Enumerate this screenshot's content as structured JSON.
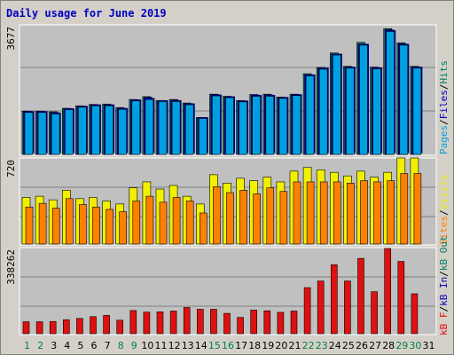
{
  "title": "Daily usage for June 2019",
  "colors": {
    "pages": "#00a0e0",
    "files": "#0000c0",
    "hits": "#00806a",
    "visits": "#f0f000",
    "sites": "#ff8000",
    "kbin": "#0000c0",
    "kbout": "#00806a",
    "kbf": "#e01010",
    "weekend": "#008040",
    "weekday": "#000000",
    "panel_bg": "#c0c0c0",
    "frame_bg": "#d4d0c8",
    "gridline": "#808080"
  },
  "chart_data": [
    {
      "type": "bar",
      "panel": "hits-files-pages",
      "ymax_label": "3677",
      "ymax": 3677,
      "legend": [
        {
          "label": "Pages",
          "color": "#00a0e0"
        },
        {
          "label": "/",
          "color": "#000000"
        },
        {
          "label": "Files",
          "color": "#0000c0"
        },
        {
          "label": "/",
          "color": "#000000"
        },
        {
          "label": "Hits",
          "color": "#00806a"
        }
      ],
      "categories": [
        "1",
        "2",
        "3",
        "4",
        "5",
        "6",
        "7",
        "8",
        "9",
        "10",
        "11",
        "12",
        "13",
        "14",
        "15",
        "16",
        "17",
        "18",
        "19",
        "20",
        "21",
        "22",
        "23",
        "24",
        "25",
        "26",
        "27",
        "28",
        "29",
        "30",
        "31"
      ],
      "series": [
        {
          "name": "Hits",
          "values": [
            1230,
            1230,
            1210,
            1310,
            1380,
            1420,
            1430,
            1330,
            1560,
            1640,
            1530,
            1560,
            1460,
            1050,
            1710,
            1650,
            1530,
            1700,
            1710,
            1630,
            1710,
            2290,
            2470,
            2880,
            2500,
            3180,
            2480,
            3570,
            3170,
            2500,
            0
          ]
        },
        {
          "name": "Files",
          "values": [
            1220,
            1220,
            1190,
            1300,
            1370,
            1410,
            1410,
            1310,
            1550,
            1620,
            1520,
            1540,
            1440,
            1040,
            1700,
            1630,
            1520,
            1690,
            1690,
            1610,
            1700,
            2260,
            2450,
            2850,
            2480,
            3130,
            2460,
            3540,
            3140,
            2480,
            0
          ]
        },
        {
          "name": "Pages",
          "values": [
            1190,
            1190,
            1150,
            1270,
            1340,
            1380,
            1380,
            1280,
            1520,
            1560,
            1500,
            1500,
            1410,
            1020,
            1660,
            1610,
            1490,
            1650,
            1650,
            1590,
            1670,
            2230,
            2420,
            2820,
            2450,
            3100,
            2430,
            3490,
            3100,
            2450,
            0
          ]
        }
      ]
    },
    {
      "type": "bar",
      "panel": "visits-sites",
      "ymax_label": "720",
      "ymax": 720,
      "legend": [
        {
          "label": "Sites",
          "color": "#ff8000"
        },
        {
          "label": "/",
          "color": "#000000"
        },
        {
          "label": "Visits",
          "color": "#f0f000"
        }
      ],
      "categories": [
        "1",
        "2",
        "3",
        "4",
        "5",
        "6",
        "7",
        "8",
        "9",
        "10",
        "11",
        "12",
        "13",
        "14",
        "15",
        "16",
        "17",
        "18",
        "19",
        "20",
        "21",
        "22",
        "23",
        "24",
        "25",
        "26",
        "27",
        "28",
        "29",
        "30",
        "31"
      ],
      "series": [
        {
          "name": "Visits",
          "values": [
            390,
            400,
            370,
            450,
            380,
            390,
            360,
            335,
            470,
            520,
            460,
            490,
            400,
            335,
            580,
            510,
            550,
            530,
            560,
            520,
            610,
            640,
            620,
            600,
            570,
            610,
            560,
            600,
            720,
            720,
            0
          ]
        },
        {
          "name": "Sites",
          "values": [
            310,
            340,
            300,
            380,
            330,
            310,
            290,
            270,
            360,
            400,
            350,
            390,
            360,
            260,
            480,
            430,
            450,
            420,
            470,
            440,
            520,
            520,
            520,
            520,
            510,
            530,
            520,
            530,
            590,
            590,
            0
          ]
        }
      ]
    },
    {
      "type": "bar",
      "panel": "kbf-kbin-kbout",
      "ymax_label": "338262",
      "ymax": 338262,
      "legend": [
        {
          "label": "kB F",
          "color": "#e01010"
        },
        {
          "label": "/",
          "color": "#000000"
        },
        {
          "label": "kB In",
          "color": "#0000c0"
        },
        {
          "label": "/",
          "color": "#000000"
        },
        {
          "label": "kB Out",
          "color": "#00806a"
        }
      ],
      "categories": [
        "1",
        "2",
        "3",
        "4",
        "5",
        "6",
        "7",
        "8",
        "9",
        "10",
        "11",
        "12",
        "13",
        "14",
        "15",
        "16",
        "17",
        "18",
        "19",
        "20",
        "21",
        "22",
        "23",
        "24",
        "25",
        "26",
        "27",
        "28",
        "29",
        "30",
        "31"
      ],
      "series": [
        {
          "name": "kB F",
          "values": [
            47000,
            47000,
            48000,
            55000,
            60000,
            67000,
            72000,
            53000,
            91000,
            85000,
            86000,
            89000,
            103000,
            96000,
            96000,
            80000,
            64000,
            93000,
            90000,
            84000,
            89000,
            181000,
            207000,
            271000,
            207000,
            296000,
            165000,
            335000,
            284000,
            157000,
            0
          ]
        }
      ]
    }
  ],
  "weekend_days": [
    1,
    2,
    8,
    9,
    15,
    16,
    22,
    23,
    29,
    30
  ]
}
